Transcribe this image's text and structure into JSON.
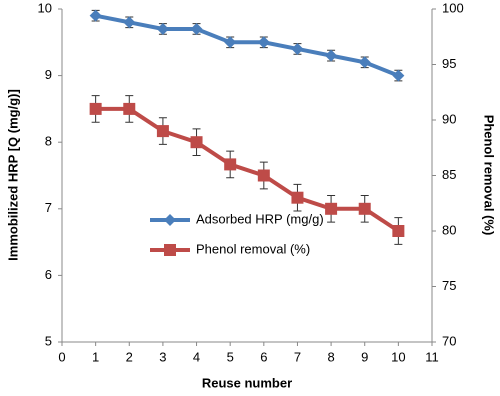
{
  "chart_data": {
    "type": "line",
    "x_label": "Reuse number",
    "y_label": "Immobilized HRP [Q (mg/g)]",
    "y2_label": "Phenol removal (%)",
    "x": [
      1,
      2,
      3,
      4,
      5,
      6,
      7,
      8,
      9,
      10
    ],
    "series": [
      {
        "name": "Adsorbed HRP (mg/g)",
        "color": "#4a7ebb",
        "marker": "diamond",
        "values": [
          9.9,
          9.8,
          9.7,
          9.7,
          9.5,
          9.5,
          9.4,
          9.3,
          9.2,
          9.0
        ],
        "errors": [
          0.08,
          0.08,
          0.08,
          0.08,
          0.08,
          0.08,
          0.08,
          0.08,
          0.08,
          0.08
        ]
      },
      {
        "name": "Phenol removal (%)",
        "color": "#be4b48",
        "marker": "square",
        "axis": "y2",
        "values": [
          91,
          91,
          89,
          88,
          86,
          85,
          83,
          82,
          82,
          80
        ],
        "errors": [
          1.2,
          1.2,
          1.2,
          1.2,
          1.2,
          1.2,
          1.2,
          1.2,
          1.2,
          1.2
        ]
      }
    ],
    "xlim": [
      0,
      11
    ],
    "xticks": [
      0,
      1,
      2,
      3,
      4,
      5,
      6,
      7,
      8,
      9,
      10,
      11
    ],
    "ylim": [
      5,
      10
    ],
    "yticks": [
      5,
      6,
      7,
      8,
      9,
      10
    ],
    "y2lim": [
      70,
      100
    ],
    "y2ticks": [
      70,
      75,
      80,
      85,
      90,
      95,
      100
    ],
    "grid": false
  }
}
